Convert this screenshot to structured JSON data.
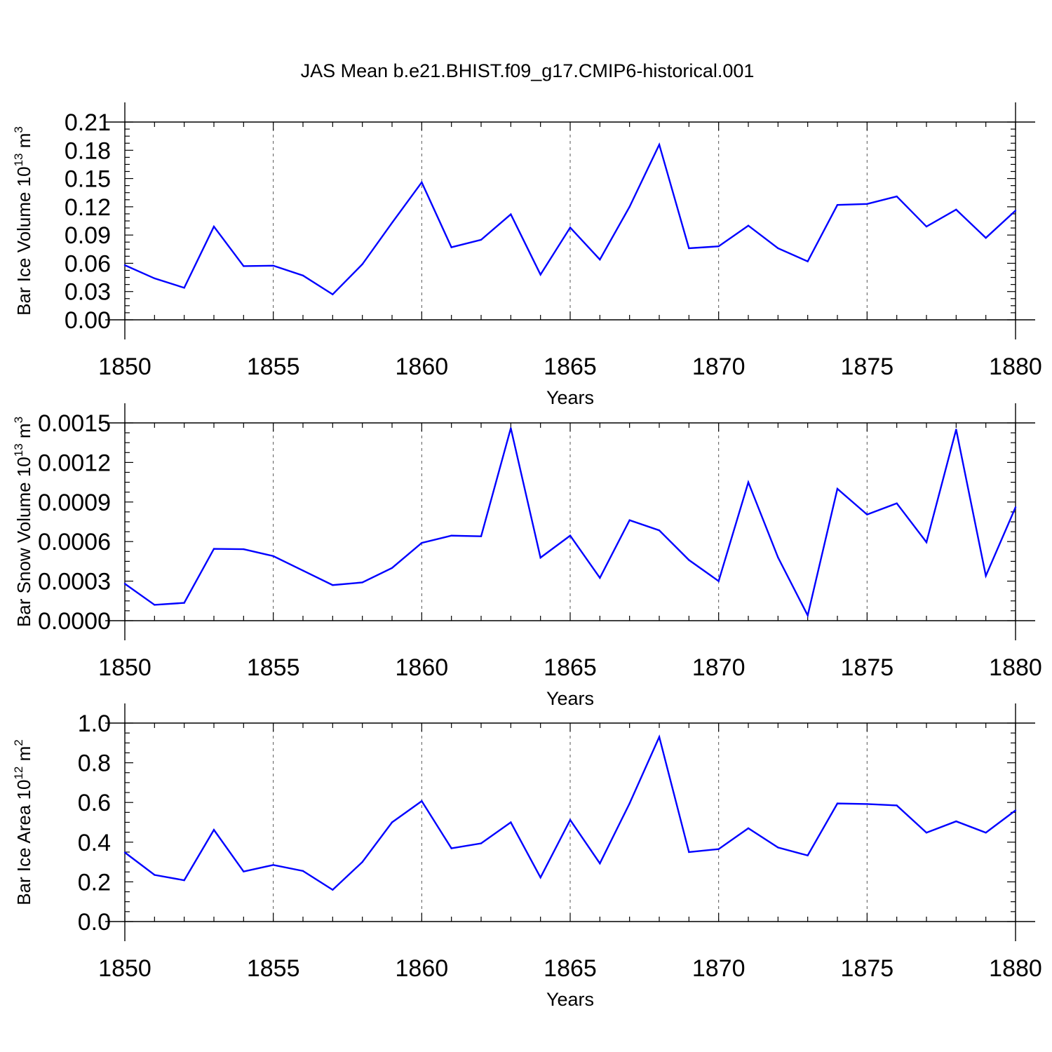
{
  "title": "JAS Mean b.e21.BHIST.f09_g17.CMIP6-historical.001",
  "colors": {
    "series": "#0000ff",
    "axis": "#000000",
    "grid": "#555555"
  },
  "chart_data": [
    {
      "type": "line",
      "xlabel": "Years",
      "ylabel": "Bar Ice Volume 10",
      "ylabel_sup": "13",
      "ylabel_unit": " m",
      "ylabel_unit_sup": "3",
      "xlim": [
        1850,
        1880
      ],
      "ylim": [
        0,
        0.21
      ],
      "x_ticks": [
        1850,
        1855,
        1860,
        1865,
        1870,
        1875,
        1880
      ],
      "x_tick_labels": [
        "1850",
        "1855",
        "1860",
        "1865",
        "1870",
        "1875",
        "1880"
      ],
      "y_ticks": [
        0,
        0.03,
        0.06,
        0.09,
        0.12,
        0.15,
        0.18,
        0.21
      ],
      "y_tick_labels": [
        "0.00",
        "0.03",
        "0.06",
        "0.09",
        "0.12",
        "0.15",
        "0.18",
        "0.21"
      ],
      "grid": "vertical-dashed",
      "x": [
        1850,
        1851,
        1852,
        1853,
        1854,
        1855,
        1856,
        1857,
        1858,
        1859,
        1860,
        1861,
        1862,
        1863,
        1864,
        1865,
        1866,
        1867,
        1868,
        1869,
        1870,
        1871,
        1872,
        1873,
        1874,
        1875,
        1876,
        1877,
        1878,
        1879,
        1880
      ],
      "series": [
        {
          "values": [
            0.058,
            0.044,
            0.034,
            0.099,
            0.057,
            0.0575,
            0.047,
            0.027,
            0.059,
            0.103,
            0.146,
            0.077,
            0.085,
            0.112,
            0.048,
            0.098,
            0.064,
            0.12,
            0.186,
            0.076,
            0.078,
            0.1,
            0.076,
            0.062,
            0.122,
            0.123,
            0.131,
            0.099,
            0.117,
            0.087,
            0.116
          ]
        }
      ]
    },
    {
      "type": "line",
      "xlabel": "Years",
      "ylabel": "Bar Snow Volume 10",
      "ylabel_sup": "13",
      "ylabel_unit": " m",
      "ylabel_unit_sup": "3",
      "xlim": [
        1850,
        1880
      ],
      "ylim": [
        0,
        0.0015
      ],
      "x_ticks": [
        1850,
        1855,
        1860,
        1865,
        1870,
        1875,
        1880
      ],
      "x_tick_labels": [
        "1850",
        "1855",
        "1860",
        "1865",
        "1870",
        "1875",
        "1880"
      ],
      "y_ticks": [
        0,
        0.0003,
        0.0006,
        0.0009,
        0.0012,
        0.0015
      ],
      "y_tick_labels": [
        "0.0000",
        "0.0003",
        "0.0006",
        "0.0009",
        "0.0012",
        "0.0015"
      ],
      "grid": "vertical-dashed",
      "x": [
        1850,
        1851,
        1852,
        1853,
        1854,
        1855,
        1856,
        1857,
        1858,
        1859,
        1860,
        1861,
        1862,
        1863,
        1864,
        1865,
        1866,
        1867,
        1868,
        1869,
        1870,
        1871,
        1872,
        1873,
        1874,
        1875,
        1876,
        1877,
        1878,
        1879,
        1880
      ],
      "series": [
        {
          "values": [
            0.00028,
            0.00012,
            0.000135,
            0.000545,
            0.000542,
            0.00049,
            0.00038,
            0.00027,
            0.00029,
            0.0004,
            0.00059,
            0.000645,
            0.00064,
            0.00146,
            0.000478,
            0.000645,
            0.000325,
            0.000762,
            0.000685,
            0.00046,
            0.0003,
            0.00105,
            0.00048,
            4e-05,
            0.001,
            0.000805,
            0.00089,
            0.000595,
            0.00145,
            0.00034,
            0.00086
          ]
        }
      ]
    },
    {
      "type": "line",
      "xlabel": "Years",
      "ylabel": "Bar Ice Area 10",
      "ylabel_sup": "12",
      "ylabel_unit": " m",
      "ylabel_unit_sup": "2",
      "xlim": [
        1850,
        1880
      ],
      "ylim": [
        0,
        1.0
      ],
      "x_ticks": [
        1850,
        1855,
        1860,
        1865,
        1870,
        1875,
        1880
      ],
      "x_tick_labels": [
        "1850",
        "1855",
        "1860",
        "1865",
        "1870",
        "1875",
        "1880"
      ],
      "y_ticks": [
        0,
        0.2,
        0.4,
        0.6,
        0.8,
        1.0
      ],
      "y_tick_labels": [
        "0.0",
        "0.2",
        "0.4",
        "0.6",
        "0.8",
        "1.0"
      ],
      "grid": "vertical-dashed",
      "x": [
        1850,
        1851,
        1852,
        1853,
        1854,
        1855,
        1856,
        1857,
        1858,
        1859,
        1860,
        1861,
        1862,
        1863,
        1864,
        1865,
        1866,
        1867,
        1868,
        1869,
        1870,
        1871,
        1872,
        1873,
        1874,
        1875,
        1876,
        1877,
        1878,
        1879,
        1880
      ],
      "series": [
        {
          "values": [
            0.348,
            0.235,
            0.208,
            0.462,
            0.252,
            0.285,
            0.255,
            0.16,
            0.3,
            0.5,
            0.607,
            0.369,
            0.394,
            0.5,
            0.222,
            0.512,
            0.293,
            0.595,
            0.93,
            0.35,
            0.365,
            0.47,
            0.373,
            0.333,
            0.595,
            0.592,
            0.585,
            0.448,
            0.505,
            0.448,
            0.56
          ]
        }
      ]
    }
  ]
}
